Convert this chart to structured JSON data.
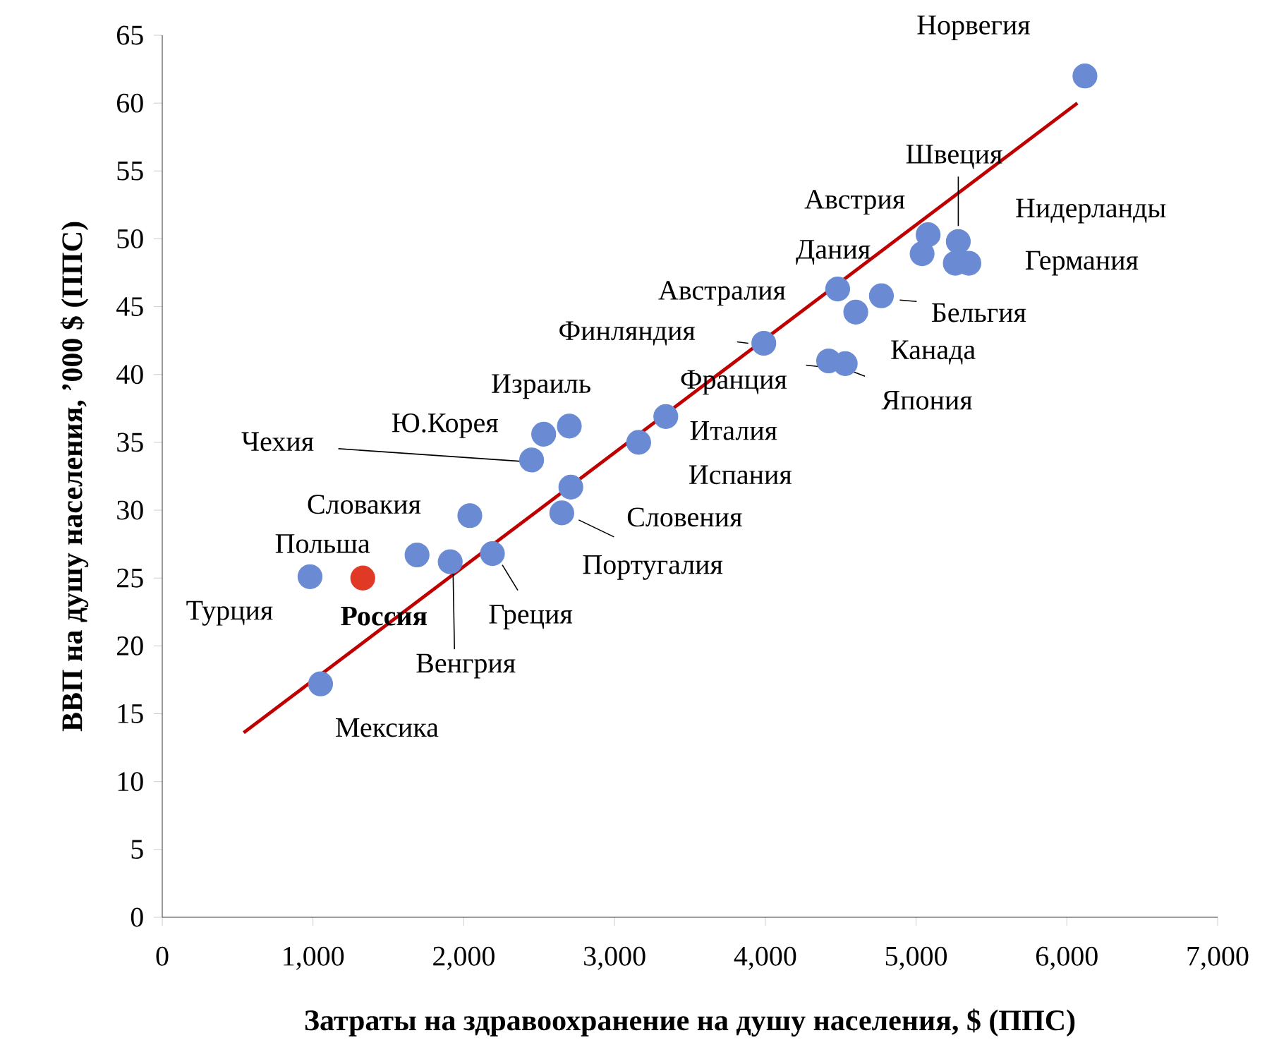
{
  "chart_data": {
    "type": "scatter",
    "xlabel": "Затраты на здравоохранение на душу населения, $ (ППС)",
    "ylabel": "ВВП на душу населения, ’000 $ (ППС)",
    "xlim": [
      0,
      7000
    ],
    "xticks": [
      0,
      {
        "value": 1000,
        "label": "1,000"
      },
      {
        "value": 2000,
        "label": "2,000"
      },
      {
        "value": 3000,
        "label": "3,000"
      },
      {
        "value": 4000,
        "label": "4,000"
      },
      {
        "value": 5000,
        "label": "5,000"
      },
      {
        "value": 6000,
        "label": "6,000"
      },
      {
        "value": 7000,
        "label": "7,000"
      }
    ],
    "ylim": [
      0,
      65
    ],
    "yticks": [
      0,
      5,
      10,
      15,
      20,
      25,
      30,
      35,
      40,
      45,
      50,
      55,
      60,
      65
    ],
    "grid": false,
    "marker": "circle",
    "series": [
      {
        "color": "#6a8bd4",
        "x": [
          6120,
          5080,
          5280,
          5040,
          5260,
          5350,
          4480,
          4600,
          4770,
          3990,
          4420,
          4530,
          3340,
          3160,
          2700,
          2530,
          2450,
          2710,
          2650,
          2040,
          1690,
          1910,
          2190,
          980,
          1050
        ],
        "values": [
          62.0,
          50.3,
          49.8,
          48.9,
          48.2,
          48.2,
          46.3,
          44.6,
          45.8,
          42.3,
          41.0,
          40.8,
          36.9,
          35.0,
          36.2,
          35.6,
          33.7,
          31.7,
          29.8,
          29.6,
          26.7,
          26.2,
          26.8,
          25.1,
          17.2
        ]
      },
      {
        "color": "#e03a26",
        "x": [
          1330
        ],
        "values": [
          25.0
        ]
      },
      {
        "type": "line",
        "color": "#c00000",
        "marker": "none",
        "line_style": "solid",
        "x": [
          540,
          6070
        ],
        "values": [
          13.6,
          60.0
        ]
      }
    ],
    "annotations": [
      {
        "text": "Норвегия",
        "x": 6120,
        "y": 62.0
      },
      {
        "text": "Австрия",
        "x": 5080,
        "y": 50.3
      },
      {
        "text": "Швеция",
        "x": 5280,
        "y": 49.8
      },
      {
        "text": "Дания",
        "x": 5040,
        "y": 48.9
      },
      {
        "text": "Нидерланды",
        "x": 5260,
        "y": 48.2
      },
      {
        "text": "Германия",
        "x": 5350,
        "y": 48.2
      },
      {
        "text": "Австралия",
        "x": 4480,
        "y": 46.3
      },
      "Франция",
      {
        "text": "Бельгия",
        "x": 4770,
        "y": 45.8
      },
      {
        "text": "Финляндия",
        "x": 3990,
        "y": 42.3
      },
      {
        "text": "Канада",
        "x": 4420,
        "y": 41.0
      },
      {
        "text": "Япония",
        "x": 4530,
        "y": 40.8
      },
      {
        "text": "Италия",
        "x": 3340,
        "y": 36.9
      },
      {
        "text": "Испания",
        "x": 3160,
        "y": 35.0
      },
      {
        "text": "Израиль",
        "x": 2700,
        "y": 36.2
      },
      {
        "text": "Ю.Корея",
        "x": 2530,
        "y": 35.6
      },
      {
        "text": "Чехия",
        "x": 2450,
        "y": 33.7
      },
      {
        "text": "Португалия",
        "x": 2710,
        "y": 31.7
      },
      {
        "text": "Словения",
        "x": 2650,
        "y": 29.8
      },
      {
        "text": "Словакия",
        "x": 2040,
        "y": 29.6
      },
      {
        "text": "Польша",
        "x": 1690,
        "y": 26.7
      },
      {
        "text": "Венгрия",
        "x": 1910,
        "y": 26.2
      },
      {
        "text": "Греция",
        "x": 2190,
        "y": 26.8
      },
      {
        "text": "Турция",
        "x": 980,
        "y": 25.1
      },
      {
        "text": "**Россия**",
        "x": 1330,
        "y": 25.0
      },
      {
        "text": "Мексика",
        "x": 1050,
        "y": 17.2
      }
    ]
  }
}
